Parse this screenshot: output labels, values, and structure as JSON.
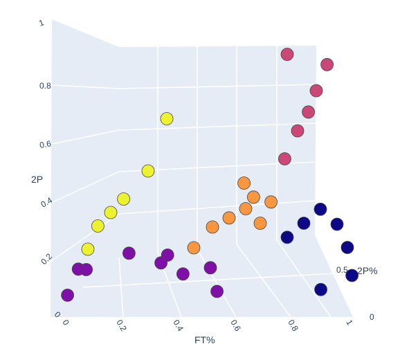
{
  "chart_data": {
    "type": "scatter3d",
    "axes": {
      "x": {
        "label": "FT%",
        "ticks": [
          "0",
          "0.2",
          "0.4",
          "0.6",
          "0.8",
          "1"
        ],
        "range": [
          0,
          1
        ]
      },
      "y": {
        "label": "2P%",
        "ticks": [
          "0",
          "0.5"
        ],
        "range": [
          0,
          1
        ]
      },
      "z": {
        "label": "2P",
        "ticks": [
          "0",
          "0.2",
          "0.4",
          "0.6",
          "0.8",
          "1"
        ],
        "range": [
          0,
          1
        ]
      }
    },
    "colors": {
      "purple": "#7e10a8",
      "yellow": "#ecf230",
      "orange": "#f99740",
      "pink": "#cb4778",
      "navy": "#0d0887",
      "background": "#e5ecf6",
      "text": "#2a3f5f"
    },
    "points": [
      {
        "cluster": "purple",
        "x": 0.03,
        "y": 0.2,
        "z": 0.05
      },
      {
        "cluster": "purple",
        "x": 0.08,
        "y": 0.3,
        "z": 0.14
      },
      {
        "cluster": "purple",
        "x": 0.06,
        "y": 0.25,
        "z": 0.15
      },
      {
        "cluster": "purple",
        "x": 0.22,
        "y": 0.35,
        "z": 0.2
      },
      {
        "cluster": "purple",
        "x": 0.33,
        "y": 0.35,
        "z": 0.16
      },
      {
        "cluster": "purple",
        "x": 0.36,
        "y": 0.3,
        "z": 0.2
      },
      {
        "cluster": "purple",
        "x": 0.42,
        "y": 0.25,
        "z": 0.13
      },
      {
        "cluster": "purple",
        "x": 0.5,
        "y": 0.35,
        "z": 0.14
      },
      {
        "cluster": "purple",
        "x": 0.53,
        "y": 0.3,
        "z": 0.05
      },
      {
        "cluster": "yellow",
        "x": 0.1,
        "y": 0.2,
        "z": 0.24
      },
      {
        "cluster": "yellow",
        "x": 0.12,
        "y": 0.3,
        "z": 0.32
      },
      {
        "cluster": "yellow",
        "x": 0.15,
        "y": 0.4,
        "z": 0.36
      },
      {
        "cluster": "yellow",
        "x": 0.18,
        "y": 0.5,
        "z": 0.4
      },
      {
        "cluster": "yellow",
        "x": 0.25,
        "y": 0.6,
        "z": 0.5
      },
      {
        "cluster": "yellow",
        "x": 0.3,
        "y": 0.7,
        "z": 0.7
      },
      {
        "cluster": "orange",
        "x": 0.45,
        "y": 0.3,
        "z": 0.23
      },
      {
        "cluster": "orange",
        "x": 0.5,
        "y": 0.4,
        "z": 0.3
      },
      {
        "cluster": "orange",
        "x": 0.55,
        "y": 0.45,
        "z": 0.33
      },
      {
        "cluster": "orange",
        "x": 0.6,
        "y": 0.5,
        "z": 0.36
      },
      {
        "cluster": "orange",
        "x": 0.62,
        "y": 0.55,
        "z": 0.4
      },
      {
        "cluster": "orange",
        "x": 0.58,
        "y": 0.6,
        "z": 0.45
      },
      {
        "cluster": "orange",
        "x": 0.65,
        "y": 0.5,
        "z": 0.3
      },
      {
        "cluster": "orange",
        "x": 0.68,
        "y": 0.55,
        "z": 0.38
      },
      {
        "cluster": "pink",
        "x": 0.72,
        "y": 0.6,
        "z": 0.55
      },
      {
        "cluster": "pink",
        "x": 0.75,
        "y": 0.7,
        "z": 0.65
      },
      {
        "cluster": "pink",
        "x": 0.78,
        "y": 0.75,
        "z": 0.72
      },
      {
        "cluster": "pink",
        "x": 0.8,
        "y": 0.8,
        "z": 0.8
      },
      {
        "cluster": "pink",
        "x": 0.83,
        "y": 0.85,
        "z": 0.9
      },
      {
        "cluster": "pink",
        "x": 0.7,
        "y": 0.8,
        "z": 0.95
      },
      {
        "cluster": "navy",
        "x": 0.75,
        "y": 0.45,
        "z": 0.25
      },
      {
        "cluster": "navy",
        "x": 0.8,
        "y": 0.5,
        "z": 0.3
      },
      {
        "cluster": "navy",
        "x": 0.85,
        "y": 0.55,
        "z": 0.35
      },
      {
        "cluster": "navy",
        "x": 0.9,
        "y": 0.6,
        "z": 0.28
      },
      {
        "cluster": "navy",
        "x": 0.95,
        "y": 0.5,
        "z": 0.2
      },
      {
        "cluster": "navy",
        "x": 0.98,
        "y": 0.4,
        "z": 0.1
      },
      {
        "cluster": "navy",
        "x": 0.88,
        "y": 0.35,
        "z": 0.05
      }
    ]
  }
}
